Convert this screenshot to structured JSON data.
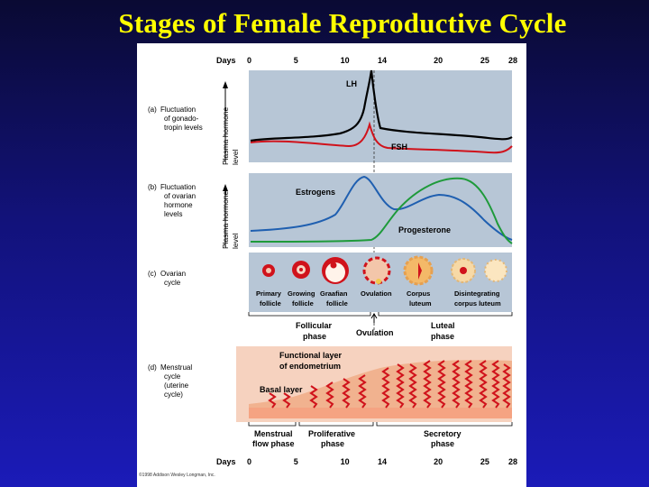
{
  "title": "Stages of Female Reproductive Cycle",
  "days_label": "Days",
  "days": [
    "0",
    "5",
    "10",
    "14",
    "20",
    "25",
    "28"
  ],
  "panels": {
    "a": {
      "letter": "(a)",
      "line1": "Fluctuation",
      "line2": "of gonado-",
      "line3": "tropin levels",
      "axis1": "Plasma hormone",
      "axis2": "level",
      "lh": "LH",
      "fsh": "FSH"
    },
    "b": {
      "letter": "(b)",
      "line1": "Fluctuation",
      "line2": "of ovarian",
      "line3": "hormone",
      "line4": "levels",
      "axis1": "Plasma hormone",
      "axis2": "level",
      "estrogens": "Estrogens",
      "progesterone": "Progesterone"
    },
    "c": {
      "letter": "(c)",
      "line1": "Ovarian",
      "line2": "cycle",
      "stages": [
        {
          "l1": "Primary",
          "l2": "follicle"
        },
        {
          "l1": "Growing",
          "l2": "follicle"
        },
        {
          "l1": "Graafian",
          "l2": "follicle"
        },
        {
          "l1": "Ovulation",
          "l2": ""
        },
        {
          "l1": "Corpus",
          "l2": "luteum"
        },
        {
          "l1": "Disintegrating",
          "l2": "corpus luteum"
        }
      ],
      "follicular1": "Follicular",
      "follicular2": "phase",
      "ovulation": "Ovulation",
      "luteal1": "Luteal",
      "luteal2": "phase"
    },
    "d": {
      "letter": "(d)",
      "line1": "Menstrual",
      "line2": "cycle",
      "line3": "(uterine",
      "line4": "cycle)",
      "functional1": "Functional layer",
      "functional2": "of endometrium",
      "basal": "Basal layer",
      "menstrual1": "Menstrual",
      "menstrual2": "flow phase",
      "proliferative1": "Proliferative",
      "proliferative2": "phase",
      "secretory1": "Secretory",
      "secretory2": "phase"
    }
  },
  "copyright": "©1998 Addison Wesley Longman, Inc.",
  "colors": {
    "lh": "#000000",
    "fsh": "#d0121b",
    "estrogen": "#1f5fb0",
    "progesterone": "#1e9a3a",
    "panel_bg": "#b7c6d6",
    "uterus_bg": "#f6d2bf",
    "title": "#ffff00"
  }
}
